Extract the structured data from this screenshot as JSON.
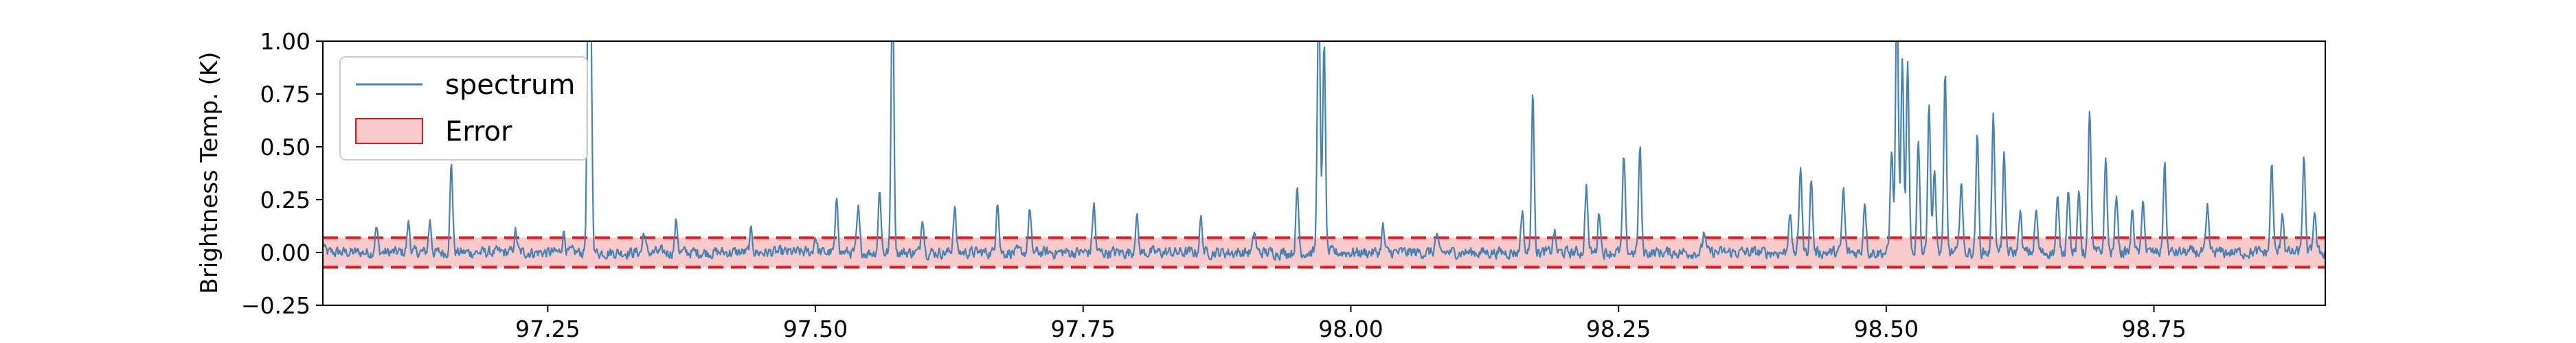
{
  "chart_data": {
    "type": "line",
    "title": "",
    "xlabel": "",
    "ylabel": "Brightness Temp. (K)",
    "xlim": [
      97.04,
      98.91
    ],
    "ylim": [
      -0.25,
      1.0
    ],
    "xticks": [
      97.25,
      97.5,
      97.75,
      98.0,
      98.25,
      98.5,
      98.75
    ],
    "xtick_labels": [
      "97.25",
      "97.50",
      "97.75",
      "98.00",
      "98.25",
      "98.50",
      "98.75"
    ],
    "yticks": [
      -0.25,
      0.0,
      0.25,
      0.5,
      0.75,
      1.0
    ],
    "ytick_labels": [
      "−0.25",
      "0.00",
      "0.25",
      "0.50",
      "0.75",
      "1.00"
    ],
    "grid": false,
    "legend_position": "top-left",
    "series": [
      {
        "name": "spectrum",
        "color": "#4682b4",
        "baseline_noise": 0.03,
        "peaks": [
          {
            "x": 97.04,
            "y": 0.05
          },
          {
            "x": 97.09,
            "y": 0.12
          },
          {
            "x": 97.12,
            "y": 0.14
          },
          {
            "x": 97.14,
            "y": 0.15
          },
          {
            "x": 97.16,
            "y": 0.42
          },
          {
            "x": 97.22,
            "y": 0.1
          },
          {
            "x": 97.265,
            "y": 0.1
          },
          {
            "x": 97.288,
            "y": 1.3
          },
          {
            "x": 97.29,
            "y": 1.1
          },
          {
            "x": 97.34,
            "y": 0.1
          },
          {
            "x": 97.37,
            "y": 0.15
          },
          {
            "x": 97.44,
            "y": 0.1
          },
          {
            "x": 97.5,
            "y": 0.08
          },
          {
            "x": 97.52,
            "y": 0.25
          },
          {
            "x": 97.54,
            "y": 0.2
          },
          {
            "x": 97.56,
            "y": 0.3
          },
          {
            "x": 97.572,
            "y": 1.3
          },
          {
            "x": 97.6,
            "y": 0.18
          },
          {
            "x": 97.63,
            "y": 0.22
          },
          {
            "x": 97.67,
            "y": 0.26
          },
          {
            "x": 97.7,
            "y": 0.2
          },
          {
            "x": 97.76,
            "y": 0.23
          },
          {
            "x": 97.8,
            "y": 0.18
          },
          {
            "x": 97.86,
            "y": 0.16
          },
          {
            "x": 97.91,
            "y": 0.1
          },
          {
            "x": 97.95,
            "y": 0.3
          },
          {
            "x": 97.97,
            "y": 1.3
          },
          {
            "x": 97.975,
            "y": 1.0
          },
          {
            "x": 98.03,
            "y": 0.12
          },
          {
            "x": 98.08,
            "y": 0.08
          },
          {
            "x": 98.16,
            "y": 0.2
          },
          {
            "x": 98.17,
            "y": 0.75
          },
          {
            "x": 98.19,
            "y": 0.1
          },
          {
            "x": 98.22,
            "y": 0.32
          },
          {
            "x": 98.232,
            "y": 0.2
          },
          {
            "x": 98.255,
            "y": 0.45
          },
          {
            "x": 98.27,
            "y": 0.5
          },
          {
            "x": 98.33,
            "y": 0.1
          },
          {
            "x": 98.41,
            "y": 0.2
          },
          {
            "x": 98.42,
            "y": 0.42
          },
          {
            "x": 98.43,
            "y": 0.35
          },
          {
            "x": 98.46,
            "y": 0.3
          },
          {
            "x": 98.48,
            "y": 0.25
          },
          {
            "x": 98.505,
            "y": 0.5
          },
          {
            "x": 98.51,
            "y": 1.3
          },
          {
            "x": 98.515,
            "y": 0.9
          },
          {
            "x": 98.52,
            "y": 0.88
          },
          {
            "x": 98.53,
            "y": 0.55
          },
          {
            "x": 98.54,
            "y": 0.72
          },
          {
            "x": 98.545,
            "y": 0.4
          },
          {
            "x": 98.555,
            "y": 0.83
          },
          {
            "x": 98.57,
            "y": 0.35
          },
          {
            "x": 98.585,
            "y": 0.55
          },
          {
            "x": 98.6,
            "y": 0.68
          },
          {
            "x": 98.61,
            "y": 0.45
          },
          {
            "x": 98.625,
            "y": 0.2
          },
          {
            "x": 98.64,
            "y": 0.2
          },
          {
            "x": 98.66,
            "y": 0.25
          },
          {
            "x": 98.67,
            "y": 0.32
          },
          {
            "x": 98.68,
            "y": 0.28
          },
          {
            "x": 98.69,
            "y": 0.68
          },
          {
            "x": 98.705,
            "y": 0.44
          },
          {
            "x": 98.715,
            "y": 0.28
          },
          {
            "x": 98.73,
            "y": 0.2
          },
          {
            "x": 98.74,
            "y": 0.25
          },
          {
            "x": 98.76,
            "y": 0.42
          },
          {
            "x": 98.8,
            "y": 0.2
          },
          {
            "x": 98.86,
            "y": 0.42
          },
          {
            "x": 98.87,
            "y": 0.2
          },
          {
            "x": 98.89,
            "y": 0.45
          },
          {
            "x": 98.9,
            "y": 0.2
          }
        ]
      }
    ],
    "error_band": {
      "name": "Error",
      "lower": -0.07,
      "upper": 0.07,
      "fill_color": "#f4a6a6",
      "line_color": "#e41a1c"
    }
  }
}
